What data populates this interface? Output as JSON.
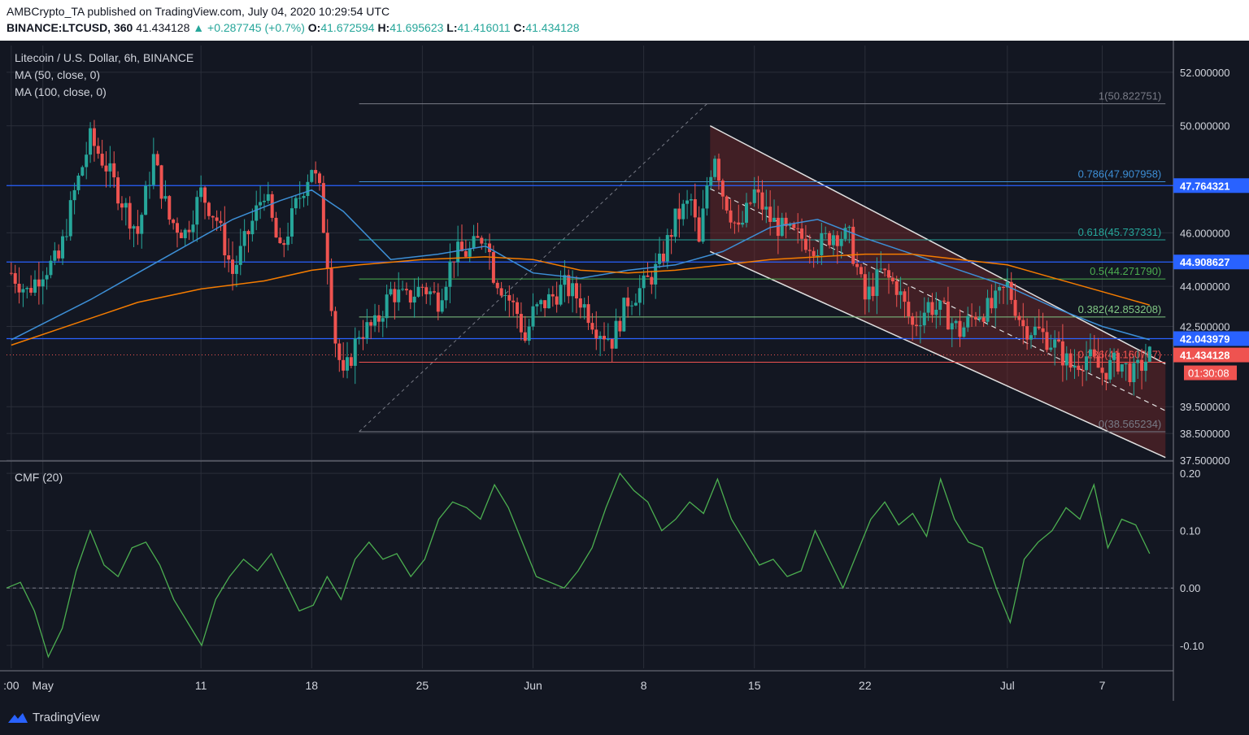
{
  "header": {
    "line1": "AMBCrypto_TA published on TradingView.com, July 04, 2020 10:29:54 UTC",
    "symbol": "BINANCE:LTCUSD, 360",
    "last": "41.434128",
    "change": "▲ +0.287745 (+0.7%)",
    "o_label": "O:",
    "o": "41.672594",
    "h_label": "H:",
    "h": "41.695623",
    "l_label": "L:",
    "l": "41.416011",
    "c_label": "C:",
    "c": "41.434128"
  },
  "legend": {
    "title": "Litecoin / U.S. Dollar, 6h, BINANCE",
    "ma50": "MA (50, close, 0)",
    "ma100": "MA (100, close, 0)",
    "cmf": "CMF (20)"
  },
  "footer": {
    "brand": "TradingView"
  },
  "colors": {
    "bg": "#131722",
    "up": "#26a69a",
    "down": "#ef5350",
    "ma50": "#3d8fd6",
    "ma100": "#f57c00",
    "cmf": "#4caf50",
    "blue_line": "#2962ff",
    "channel_fill": "#7a2a2a"
  },
  "chart_data": [
    {
      "type": "candlestick",
      "title": "Litecoin / U.S. Dollar, 6h, BINANCE",
      "ylim": [
        37.5,
        53.0
      ],
      "y_ticks": [
        "52.000000",
        "50.000000",
        "46.000000",
        "44.000000",
        "42.500000",
        "39.500000",
        "38.500000",
        "37.500000"
      ],
      "y_tick_values": [
        52.0,
        50.0,
        46.0,
        44.0,
        42.5,
        39.5,
        38.5,
        37.5
      ],
      "x_ticks": [
        ":00",
        "May",
        "11",
        "18",
        "25",
        "Jun",
        "8",
        "15",
        "22",
        "Jul",
        "7"
      ],
      "x_tick_days": [
        -2,
        0,
        10,
        17,
        24,
        31,
        38,
        45,
        52,
        61,
        67
      ],
      "x_range_days": [
        -2.3,
        71.5
      ],
      "price_labels": [
        {
          "text": "47.764321",
          "value": 47.764321,
          "color": "#2962ff"
        },
        {
          "text": "44.908627",
          "value": 44.908627,
          "color": "#2962ff"
        },
        {
          "text": "42.043979",
          "value": 42.043979,
          "color": "#2962ff"
        },
        {
          "text": "41.434128",
          "value": 41.434128,
          "color": "#ef5350"
        }
      ],
      "countdown": "01:30:08",
      "fib_labels": [
        {
          "text": "1(50.822751)",
          "value": 50.822751
        },
        {
          "text": "0.786(47.907958)",
          "value": 47.907958
        },
        {
          "text": "0.618(45.737331)",
          "value": 45.737331
        },
        {
          "text": "0.5(44.271790)",
          "value": 44.27179
        },
        {
          "text": "0.382(42.853208)",
          "value": 42.853208
        },
        {
          "text": "0.236(41.160767)",
          "value": 41.160767
        },
        {
          "text": "0(38.565234)",
          "value": 38.565234
        }
      ],
      "ohlc_anchor_points": [
        [
          -2.0,
          44.5
        ],
        [
          -1.0,
          43.8
        ],
        [
          0.0,
          44.6
        ],
        [
          1.0,
          45.0
        ],
        [
          2.0,
          47.5
        ],
        [
          3.0,
          49.5
        ],
        [
          4.0,
          48.5
        ],
        [
          5.0,
          47.2
        ],
        [
          6.0,
          46.0
        ],
        [
          7.0,
          48.8
        ],
        [
          8.0,
          46.5
        ],
        [
          9.0,
          46.0
        ],
        [
          10.0,
          47.5
        ],
        [
          11.0,
          46.5
        ],
        [
          12.0,
          44.5
        ],
        [
          13.0,
          46.0
        ],
        [
          14.0,
          47.6
        ],
        [
          15.0,
          45.2
        ],
        [
          16.0,
          47.0
        ],
        [
          17.0,
          48.5
        ],
        [
          17.5,
          47.5
        ],
        [
          18.0,
          45.0
        ],
        [
          18.5,
          42.0
        ],
        [
          19.0,
          40.5
        ],
        [
          19.5,
          41.4
        ],
        [
          20.0,
          42.3
        ],
        [
          21.0,
          42.5
        ],
        [
          22.0,
          43.8
        ],
        [
          23.0,
          43.5
        ],
        [
          24.0,
          44.0
        ],
        [
          25.0,
          43.5
        ],
        [
          26.0,
          45.2
        ],
        [
          27.0,
          45.3
        ],
        [
          28.0,
          46.0
        ],
        [
          28.5,
          44.5
        ],
        [
          29.0,
          44.0
        ],
        [
          30.0,
          43.0
        ],
        [
          30.5,
          42.0
        ],
        [
          31.0,
          43.0
        ],
        [
          32.0,
          43.5
        ],
        [
          33.0,
          44.0
        ],
        [
          34.0,
          43.5
        ],
        [
          35.0,
          42.5
        ],
        [
          36.0,
          42.0
        ],
        [
          37.0,
          43.5
        ],
        [
          38.0,
          44.0
        ],
        [
          39.0,
          44.8
        ],
        [
          40.0,
          46.5
        ],
        [
          41.0,
          47.2
        ],
        [
          41.5,
          45.5
        ],
        [
          42.0,
          47.8
        ],
        [
          42.5,
          49.0
        ],
        [
          43.0,
          47.5
        ],
        [
          44.0,
          46.0
        ],
        [
          45.0,
          47.5
        ],
        [
          46.0,
          46.5
        ],
        [
          47.0,
          46.0
        ],
        [
          48.0,
          45.8
        ],
        [
          49.0,
          45.5
        ],
        [
          50.0,
          46.0
        ],
        [
          51.0,
          45.8
        ],
        [
          52.0,
          43.5
        ],
        [
          53.0,
          44.5
        ],
        [
          54.0,
          44.0
        ],
        [
          55.0,
          42.5
        ],
        [
          56.0,
          43.3
        ],
        [
          57.0,
          43.0
        ],
        [
          58.0,
          42.3
        ],
        [
          59.0,
          43.0
        ],
        [
          60.0,
          43.2
        ],
        [
          61.0,
          44.0
        ],
        [
          62.0,
          42.5
        ],
        [
          63.0,
          42.3
        ],
        [
          64.0,
          41.8
        ],
        [
          65.0,
          41.0
        ],
        [
          66.0,
          41.4
        ],
        [
          67.0,
          40.8
        ],
        [
          68.0,
          41.2
        ],
        [
          69.0,
          40.7
        ],
        [
          70.0,
          41.43
        ]
      ],
      "ma50_points": [
        [
          -2,
          42.0
        ],
        [
          0,
          42.6
        ],
        [
          3,
          43.5
        ],
        [
          6,
          44.5
        ],
        [
          9,
          45.5
        ],
        [
          12,
          46.5
        ],
        [
          15,
          47.2
        ],
        [
          17,
          47.6
        ],
        [
          19,
          46.8
        ],
        [
          22,
          45.0
        ],
        [
          25,
          45.2
        ],
        [
          28,
          45.5
        ],
        [
          31,
          44.5
        ],
        [
          34,
          44.3
        ],
        [
          37,
          44.6
        ],
        [
          40,
          44.8
        ],
        [
          43,
          45.3
        ],
        [
          46,
          46.2
        ],
        [
          49,
          46.5
        ],
        [
          52,
          45.8
        ],
        [
          55,
          45.2
        ],
        [
          58,
          44.6
        ],
        [
          61,
          44.0
        ],
        [
          64,
          43.2
        ],
        [
          67,
          42.5
        ],
        [
          70,
          42.0
        ]
      ],
      "ma100_points": [
        [
          -2,
          41.8
        ],
        [
          2,
          42.6
        ],
        [
          6,
          43.4
        ],
        [
          10,
          43.9
        ],
        [
          14,
          44.2
        ],
        [
          17,
          44.6
        ],
        [
          20,
          44.8
        ],
        [
          24,
          45.0
        ],
        [
          28,
          45.1
        ],
        [
          31,
          45.0
        ],
        [
          34,
          44.6
        ],
        [
          37,
          44.5
        ],
        [
          40,
          44.6
        ],
        [
          43,
          44.8
        ],
        [
          46,
          45.0
        ],
        [
          49,
          45.1
        ],
        [
          52,
          45.2
        ],
        [
          55,
          45.2
        ],
        [
          58,
          45.0
        ],
        [
          61,
          44.8
        ],
        [
          64,
          44.3
        ],
        [
          67,
          43.8
        ],
        [
          70,
          43.3
        ]
      ],
      "fib_x_range_days": [
        20.0,
        71.0
      ]
    },
    {
      "type": "line",
      "title": "CMF (20)",
      "ylim": [
        -0.14,
        0.22
      ],
      "y_ticks": [
        "0.20",
        "0.10",
        "0.00",
        "-0.10"
      ],
      "y_tick_values": [
        0.2,
        0.1,
        0.0,
        -0.1
      ],
      "cmf_points": [
        [
          -2,
          0.0
        ],
        [
          -1,
          0.01
        ],
        [
          0,
          -0.04
        ],
        [
          1,
          -0.12
        ],
        [
          2,
          -0.07
        ],
        [
          3,
          0.03
        ],
        [
          4,
          0.1
        ],
        [
          5,
          0.04
        ],
        [
          6,
          0.02
        ],
        [
          7,
          0.07
        ],
        [
          8,
          0.08
        ],
        [
          9,
          0.04
        ],
        [
          10,
          -0.02
        ],
        [
          11,
          -0.06
        ],
        [
          12,
          -0.1
        ],
        [
          13,
          -0.02
        ],
        [
          14,
          0.02
        ],
        [
          15,
          0.05
        ],
        [
          16,
          0.03
        ],
        [
          17,
          0.06
        ],
        [
          18,
          0.01
        ],
        [
          19,
          -0.04
        ],
        [
          20,
          -0.03
        ],
        [
          21,
          0.02
        ],
        [
          22,
          -0.02
        ],
        [
          23,
          0.05
        ],
        [
          24,
          0.08
        ],
        [
          25,
          0.05
        ],
        [
          26,
          0.06
        ],
        [
          27,
          0.02
        ],
        [
          28,
          0.05
        ],
        [
          29,
          0.12
        ],
        [
          30,
          0.15
        ],
        [
          31,
          0.14
        ],
        [
          32,
          0.12
        ],
        [
          33,
          0.18
        ],
        [
          34,
          0.14
        ],
        [
          35,
          0.08
        ],
        [
          36,
          0.02
        ],
        [
          37,
          0.01
        ],
        [
          38,
          0.0
        ],
        [
          39,
          0.03
        ],
        [
          40,
          0.07
        ],
        [
          41,
          0.14
        ],
        [
          42,
          0.2
        ],
        [
          43,
          0.17
        ],
        [
          44,
          0.15
        ],
        [
          45,
          0.1
        ],
        [
          46,
          0.12
        ],
        [
          47,
          0.15
        ],
        [
          48,
          0.13
        ],
        [
          49,
          0.19
        ],
        [
          50,
          0.12
        ],
        [
          51,
          0.08
        ],
        [
          52,
          0.04
        ],
        [
          53,
          0.05
        ],
        [
          54,
          0.02
        ],
        [
          55,
          0.03
        ],
        [
          56,
          0.1
        ],
        [
          57,
          0.05
        ],
        [
          58,
          0.0
        ],
        [
          59,
          0.06
        ],
        [
          60,
          0.12
        ],
        [
          61,
          0.15
        ],
        [
          62,
          0.11
        ],
        [
          63,
          0.13
        ],
        [
          64,
          0.09
        ],
        [
          65,
          0.19
        ],
        [
          66,
          0.12
        ],
        [
          67,
          0.08
        ],
        [
          68,
          0.07
        ],
        [
          69,
          0.0
        ],
        [
          70,
          -0.06
        ],
        [
          71,
          0.05
        ],
        [
          72,
          0.08
        ],
        [
          73,
          0.1
        ],
        [
          74,
          0.14
        ],
        [
          75,
          0.12
        ],
        [
          76,
          0.18
        ],
        [
          77,
          0.07
        ],
        [
          78,
          0.12
        ],
        [
          79,
          0.11
        ],
        [
          80,
          0.06
        ]
      ]
    }
  ]
}
